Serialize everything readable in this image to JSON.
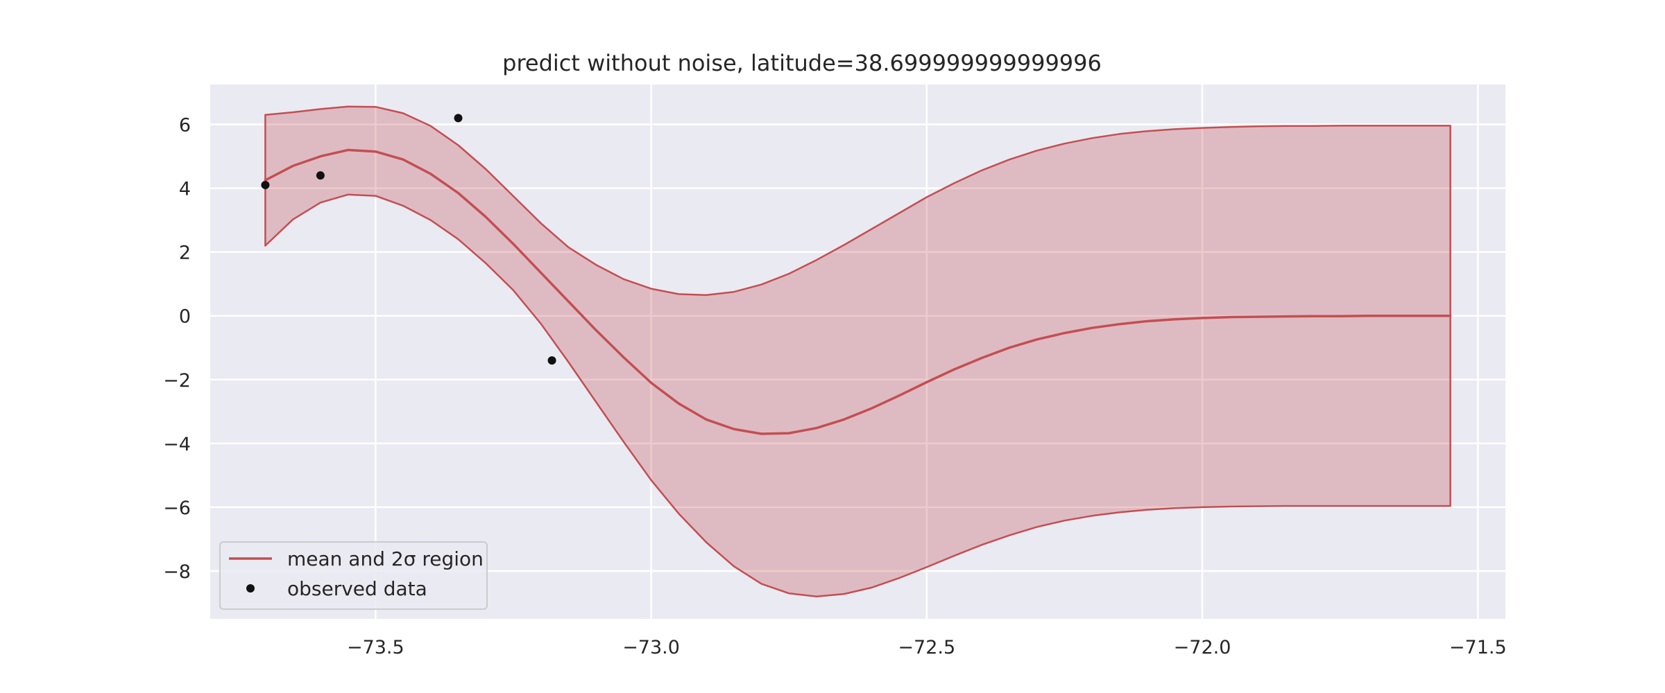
{
  "chart_data": {
    "type": "line",
    "title": "predict without noise, latitude=38.699999999999996",
    "xlabel": "",
    "ylabel": "",
    "xlim": [
      -73.8,
      -71.45
    ],
    "ylim": [
      -9.5,
      7.25
    ],
    "xticks": [
      -73.5,
      -73.0,
      -72.5,
      -72.0,
      -71.5
    ],
    "xtick_labels": [
      "−73.5",
      "−73.0",
      "−72.5",
      "−72.0",
      "−71.5"
    ],
    "yticks": [
      6,
      4,
      2,
      0,
      -2,
      -4,
      -6,
      -8
    ],
    "ytick_labels": [
      "6",
      "4",
      "2",
      "0",
      "−2",
      "−4",
      "−6",
      "−8"
    ],
    "grid": true,
    "legend_position": "lower-left",
    "legend": [
      {
        "label": "mean and 2σ region",
        "kind": "line"
      },
      {
        "label": "observed data",
        "kind": "marker"
      }
    ],
    "colors": {
      "mean": "#c44e52",
      "band_fill": "#c44e52",
      "points": "#111111",
      "axes_background": "#eaeaf2",
      "grid": "#ffffff"
    },
    "x": [
      -73.7,
      -73.65,
      -73.6,
      -73.55,
      -73.5,
      -73.45,
      -73.4,
      -73.35,
      -73.3,
      -73.25,
      -73.2,
      -73.15,
      -73.1,
      -73.05,
      -73.0,
      -72.95,
      -72.9,
      -72.85,
      -72.8,
      -72.75,
      -72.7,
      -72.65,
      -72.6,
      -72.55,
      -72.5,
      -72.45,
      -72.4,
      -72.35,
      -72.3,
      -72.25,
      -72.2,
      -72.15,
      -72.1,
      -72.05,
      -72.0,
      -71.95,
      -71.9,
      -71.85,
      -71.8,
      -71.75,
      -71.7,
      -71.65,
      -71.6,
      -71.55
    ],
    "series": [
      {
        "name": "mean and 2σ region",
        "role": "mean",
        "values": [
          4.25,
          4.7,
          5.0,
          5.2,
          5.15,
          4.9,
          4.45,
          3.85,
          3.1,
          2.25,
          1.35,
          0.45,
          -0.45,
          -1.3,
          -2.1,
          -2.75,
          -3.25,
          -3.55,
          -3.7,
          -3.68,
          -3.52,
          -3.25,
          -2.9,
          -2.5,
          -2.08,
          -1.68,
          -1.32,
          -1.0,
          -0.74,
          -0.54,
          -0.38,
          -0.26,
          -0.17,
          -0.11,
          -0.07,
          -0.04,
          -0.03,
          -0.02,
          -0.01,
          -0.01,
          0.0,
          0.0,
          0.0,
          0.0
        ]
      },
      {
        "role": "upper",
        "values": [
          6.3,
          6.38,
          6.48,
          6.56,
          6.55,
          6.35,
          5.95,
          5.35,
          4.6,
          3.75,
          2.9,
          2.15,
          1.6,
          1.15,
          0.85,
          0.68,
          0.65,
          0.75,
          0.98,
          1.32,
          1.75,
          2.22,
          2.72,
          3.22,
          3.72,
          4.16,
          4.56,
          4.9,
          5.18,
          5.4,
          5.57,
          5.7,
          5.79,
          5.85,
          5.89,
          5.92,
          5.94,
          5.95,
          5.95,
          5.96,
          5.96,
          5.96,
          5.96,
          5.96
        ]
      },
      {
        "role": "lower",
        "values": [
          2.2,
          3.02,
          3.55,
          3.8,
          3.76,
          3.45,
          3.0,
          2.4,
          1.65,
          0.8,
          -0.25,
          -1.45,
          -2.7,
          -3.95,
          -5.15,
          -6.2,
          -7.1,
          -7.85,
          -8.4,
          -8.7,
          -8.8,
          -8.72,
          -8.52,
          -8.22,
          -7.88,
          -7.52,
          -7.18,
          -6.88,
          -6.62,
          -6.42,
          -6.27,
          -6.16,
          -6.08,
          -6.03,
          -6.0,
          -5.98,
          -5.97,
          -5.96,
          -5.96,
          -5.96,
          -5.96,
          -5.96,
          -5.96,
          -5.96
        ]
      },
      {
        "name": "observed data",
        "role": "points",
        "points": [
          [
            -73.7,
            4.1
          ],
          [
            -73.6,
            4.4
          ],
          [
            -73.35,
            6.2
          ],
          [
            -73.18,
            -1.4
          ]
        ]
      }
    ]
  }
}
